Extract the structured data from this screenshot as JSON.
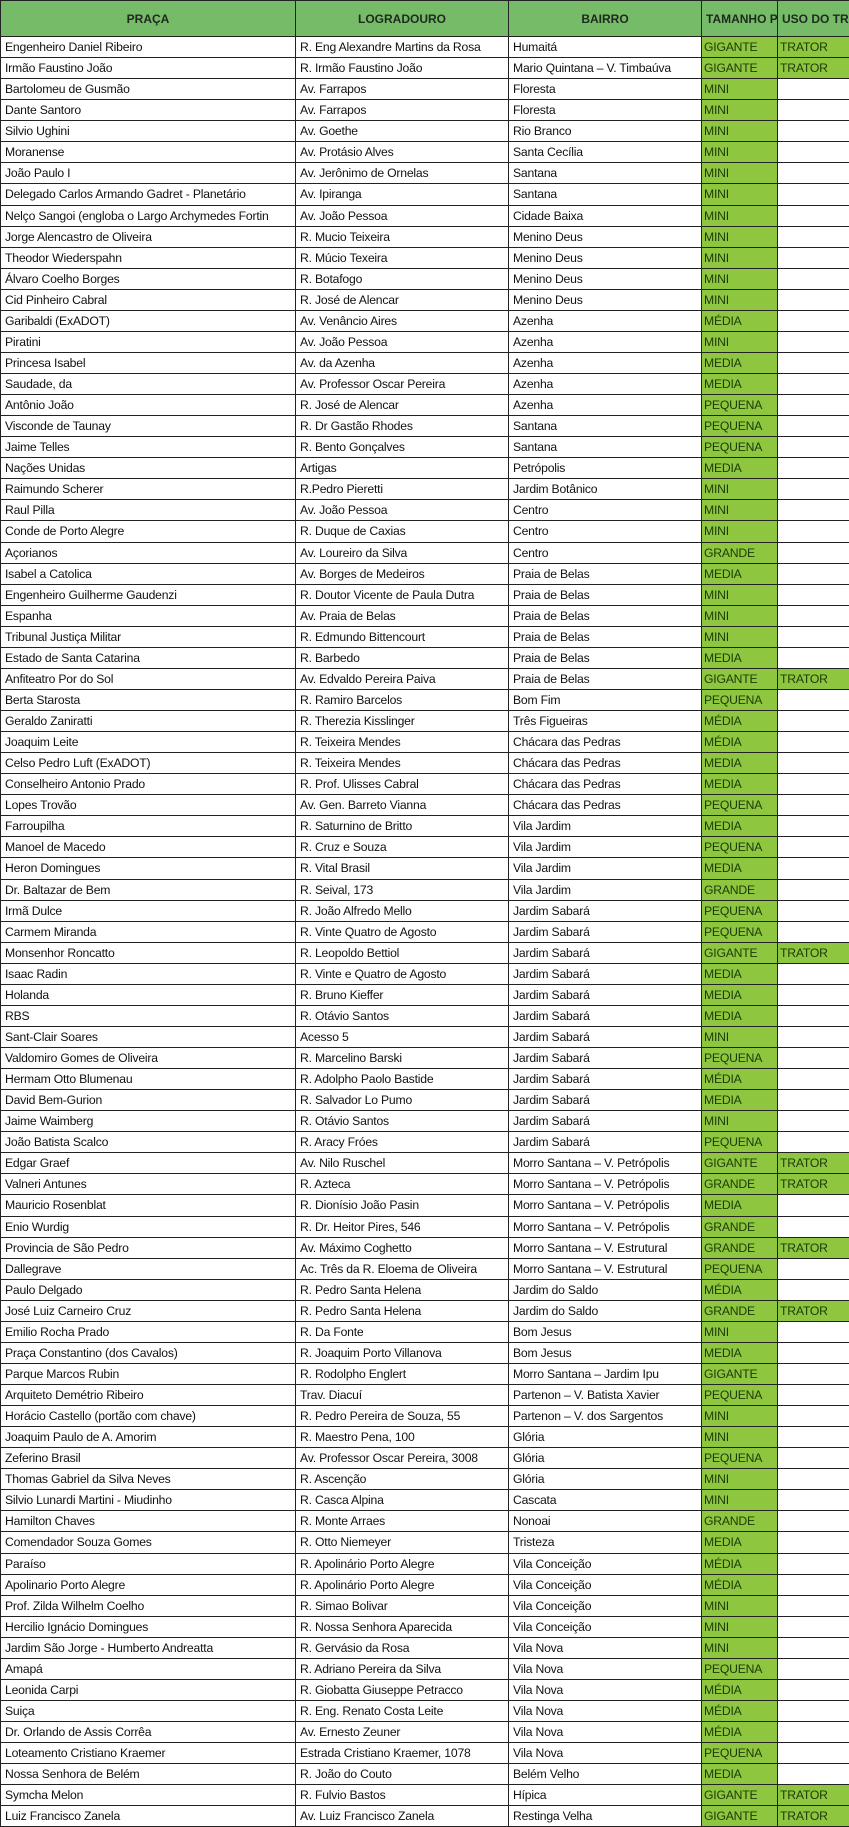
{
  "header": {
    "praca": "PRAÇA",
    "logradouro": "LOGRADOURO",
    "bairro": "BAIRRO",
    "tamanho": "TAMANHO PRAÇA",
    "uso": "USO DO TRATOR"
  },
  "colors": {
    "header_bg": "#76bb68",
    "highlight_bg": "#8ec63f"
  },
  "rows": [
    [
      "Engenheiro Daniel Ribeiro",
      "R. Eng Alexandre Martins da Rosa",
      "Humaitá",
      "GIGANTE",
      "TRATOR"
    ],
    [
      "Irmão Faustino João",
      "R. Irmão Faustino João",
      "Mario Quintana – V. Timbaúva",
      "GIGANTE",
      "TRATOR"
    ],
    [
      "Bartolomeu de Gusmão",
      "Av. Farrapos",
      "Floresta",
      "MINI",
      ""
    ],
    [
      "Dante Santoro",
      "Av. Farrapos",
      "Floresta",
      "MINI",
      ""
    ],
    [
      "Silvio Ughini",
      "Av. Goethe",
      "Rio Branco",
      "MINI",
      ""
    ],
    [
      "Moranense",
      "Av. Protásio Alves",
      "Santa Cecília",
      "MINI",
      ""
    ],
    [
      "João Paulo I",
      "Av. Jerônimo de Ornelas",
      "Santana",
      "MINI",
      ""
    ],
    [
      "Delegado Carlos Armando Gadret - Planetário",
      "Av. Ipiranga",
      "Santana",
      "MINI",
      ""
    ],
    [
      "Nelço Sangoi (engloba o Largo Archymedes Fortin",
      "Av. João Pessoa",
      "Cidade Baixa",
      "MINI",
      ""
    ],
    [
      "Jorge Alencastro de Oliveira",
      "R. Mucio Teixeira",
      "Menino Deus",
      "MINI",
      ""
    ],
    [
      "Theodor Wiederspahn",
      "R. Múcio Texeira",
      "Menino Deus",
      "MINI",
      ""
    ],
    [
      "Álvaro Coelho Borges",
      "R. Botafogo",
      "Menino Deus",
      "MINI",
      ""
    ],
    [
      "Cid Pinheiro Cabral",
      "R. José de Alencar",
      "Menino Deus",
      "MINI",
      ""
    ],
    [
      "Garibaldi (ExADOT)",
      "Av. Venâncio Aires",
      "Azenha",
      "MÉDIA",
      ""
    ],
    [
      "Piratini",
      "Av. João Pessoa",
      "Azenha",
      "MINI",
      ""
    ],
    [
      "Princesa Isabel",
      "Av. da Azenha",
      "Azenha",
      "MEDIA",
      ""
    ],
    [
      "Saudade, da",
      "Av. Professor Oscar Pereira",
      "Azenha",
      "MEDIA",
      ""
    ],
    [
      "Antônio João",
      "R. José de Alencar",
      "Azenha",
      "PEQUENA",
      ""
    ],
    [
      "Visconde de Taunay",
      "R. Dr Gastão Rhodes",
      "Santana",
      "PEQUENA",
      ""
    ],
    [
      "Jaime Telles",
      "R. Bento Gonçalves",
      "Santana",
      "PEQUENA",
      ""
    ],
    [
      "Nações Unidas",
      "Artigas",
      "Petrópolis",
      "MEDIA",
      ""
    ],
    [
      "Raimundo Scherer",
      "R.Pedro Pieretti",
      "Jardim Botânico",
      "MINI",
      ""
    ],
    [
      "Raul Pilla",
      "Av. João Pessoa",
      "Centro",
      "MINI",
      ""
    ],
    [
      "Conde de Porto Alegre",
      "R. Duque de Caxias",
      "Centro",
      "MINI",
      ""
    ],
    [
      "Açorianos",
      "Av. Loureiro da Silva",
      "Centro",
      "GRANDE",
      ""
    ],
    [
      "Isabel a Catolica",
      "Av. Borges de Medeiros",
      "Praia de Belas",
      "MEDIA",
      ""
    ],
    [
      "Engenheiro Guilherme Gaudenzi",
      "R. Doutor Vicente de Paula Dutra",
      "Praia de Belas",
      "MINI",
      ""
    ],
    [
      "Espanha",
      "Av. Praia de Belas",
      "Praia de Belas",
      "MINI",
      ""
    ],
    [
      "Tribunal Justiça Militar",
      "R. Edmundo Bittencourt",
      "Praia de Belas",
      "MINI",
      ""
    ],
    [
      "Estado de Santa Catarina",
      "R. Barbedo",
      "Praia de Belas",
      "MEDIA",
      ""
    ],
    [
      "Anfiteatro Por do Sol",
      "Av. Edvaldo Pereira Paiva",
      "Praia de Belas",
      "GIGANTE",
      "TRATOR"
    ],
    [
      "Berta Starosta",
      "R. Ramiro Barcelos",
      "Bom Fim",
      "PEQUENA",
      ""
    ],
    [
      "Geraldo Zaniratti",
      "R. Therezia Kisslinger",
      "Três Figueiras",
      "MÉDIA",
      ""
    ],
    [
      "Joaquim Leite",
      "R. Teixeira Mendes",
      "Chácara das Pedras",
      "MÉDIA",
      ""
    ],
    [
      "Celso Pedro Luft (ExADOT)",
      "R. Teixeira Mendes",
      "Chácara das Pedras",
      "MEDIA",
      ""
    ],
    [
      "Conselheiro Antonio Prado",
      "R. Prof. Ulisses Cabral",
      "Chácara das Pedras",
      "MEDIA",
      ""
    ],
    [
      "Lopes Trovão",
      "Av. Gen. Barreto Vianna",
      "Chácara das Pedras",
      "PEQUENA",
      ""
    ],
    [
      "Farroupilha",
      "R. Saturnino de Britto",
      "Vila Jardim",
      "MEDIA",
      ""
    ],
    [
      "Manoel de Macedo",
      "R. Cruz e Souza",
      "Vila Jardim",
      "PEQUENA",
      ""
    ],
    [
      "Heron Domingues",
      "R. Vital Brasil",
      "Vila Jardim",
      "MEDIA",
      ""
    ],
    [
      "Dr. Baltazar de Bem",
      "R. Seival, 173",
      "Vila Jardim",
      "GRANDE",
      ""
    ],
    [
      "Irmã Dulce",
      "R. João Alfredo Mello",
      "Jardim Sabará",
      "PEQUENA",
      ""
    ],
    [
      "Carmem Miranda",
      "R. Vinte Quatro de Agosto",
      "Jardim Sabará",
      "PEQUENA",
      ""
    ],
    [
      "Monsenhor Roncatto",
      "R. Leopoldo Bettiol",
      "Jardim Sabará",
      "GIGANTE",
      "TRATOR"
    ],
    [
      "Isaac Radin",
      "R. Vinte e Quatro de Agosto",
      "Jardim Sabará",
      "MEDIA",
      ""
    ],
    [
      "Holanda",
      "R. Bruno Kieffer",
      "Jardim Sabará",
      "MEDIA",
      ""
    ],
    [
      "RBS",
      "R. Otávio Santos",
      "Jardim Sabará",
      "MEDIA",
      ""
    ],
    [
      "Sant-Clair Soares",
      "Acesso 5",
      "Jardim Sabará",
      "MINI",
      ""
    ],
    [
      "Valdomiro Gomes de Oliveira",
      "R. Marcelino Barski",
      "Jardim Sabará",
      "PEQUENA",
      ""
    ],
    [
      "Hermam Otto Blumenau",
      "R. Adolpho Paolo Bastide",
      "Jardim Sabará",
      "MÉDIA",
      ""
    ],
    [
      "David Bem-Gurion",
      "R. Salvador Lo Pumo",
      "Jardim Sabará",
      "MEDIA",
      ""
    ],
    [
      "Jaime Waimberg",
      "R. Otávio Santos",
      "Jardim Sabará",
      "MINI",
      ""
    ],
    [
      "João Batista Scalco",
      "R. Aracy Fróes",
      "Jardim Sabará",
      "PEQUENA",
      ""
    ],
    [
      "Edgar Graef",
      "Av. Nilo Ruschel",
      "Morro Santana – V. Petrópolis",
      "GIGANTE",
      "TRATOR"
    ],
    [
      "Valneri Antunes",
      "R. Azteca",
      "Morro Santana – V. Petrópolis",
      "GRANDE",
      "TRATOR"
    ],
    [
      "Mauricio Rosenblat",
      "R. Dionísio João Pasin",
      "Morro Santana – V. Petrópolis",
      "MEDIA",
      ""
    ],
    [
      "Enio Wurdig",
      "R. Dr. Heitor Pires, 546",
      "Morro Santana – V. Petrópolis",
      "GRANDE",
      ""
    ],
    [
      "Provincia de São Pedro",
      "Av. Máximo Coghetto",
      "Morro Santana – V. Estrutural",
      "GRANDE",
      "TRATOR"
    ],
    [
      "Dallegrave",
      "Ac. Três da R. Eloema de Oliveira",
      "Morro Santana – V. Estrutural",
      "PEQUENA",
      ""
    ],
    [
      "Paulo Delgado",
      "R. Pedro Santa Helena",
      "Jardim do Saldo",
      "MÉDIA",
      ""
    ],
    [
      "José Luiz Carneiro Cruz",
      "R. Pedro Santa Helena",
      "Jardim do Saldo",
      "GRANDE",
      "TRATOR"
    ],
    [
      "Emilio Rocha Prado",
      "R. Da Fonte",
      "Bom Jesus",
      "MINI",
      ""
    ],
    [
      "Praça Constantino (dos Cavalos)",
      "R. Joaquim Porto Villanova",
      "Bom Jesus",
      "MEDIA",
      ""
    ],
    [
      "Parque Marcos Rubin",
      "R. Rodolpho Englert",
      "Morro Santana – Jardim Ipu",
      "GIGANTE",
      ""
    ],
    [
      "Arquiteto Demétrio Ribeiro",
      "Trav. Diacuí",
      "Partenon – V. Batista Xavier",
      "PEQUENA",
      ""
    ],
    [
      "Horácio Castello (portão com chave)",
      "R. Pedro Pereira de Souza, 55",
      "Partenon – V. dos Sargentos",
      "MINI",
      ""
    ],
    [
      "Joaquim Paulo de A. Amorim",
      "R. Maestro Pena, 100",
      "Glória",
      "MINI",
      ""
    ],
    [
      "Zeferino Brasil",
      "Av. Professor Oscar Pereira, 3008",
      "Glória",
      "PEQUENA",
      ""
    ],
    [
      "Thomas Gabriel da Silva Neves",
      "R. Ascenção",
      "Glória",
      "MINI",
      ""
    ],
    [
      "Silvio Lunardi Martini - Miudinho",
      "R. Casca Alpina",
      "Cascata",
      "MINI",
      ""
    ],
    [
      "Hamilton Chaves",
      "R. Monte Arraes",
      "Nonoai",
      "GRANDE",
      ""
    ],
    [
      "Comendador Souza Gomes",
      "R. Otto Niemeyer",
      "Tristeza",
      "MEDIA",
      ""
    ],
    [
      "Paraíso",
      "R. Apolinário Porto Alegre",
      "Vila Conceição",
      "MÉDIA",
      ""
    ],
    [
      "Apolinario Porto Alegre",
      "R. Apolinário Porto Alegre",
      "Vila Conceição",
      "MÉDIA",
      ""
    ],
    [
      "Prof. Zilda Wilhelm Coelho",
      "R. Simao Bolivar",
      "Vila Conceição",
      "MINI",
      ""
    ],
    [
      "Hercilio Ignácio Domingues",
      "R. Nossa Senhora Aparecida",
      "Vila Conceição",
      "MINI",
      ""
    ],
    [
      "Jardim São Jorge - Humberto Andreatta",
      "R. Gervásio da Rosa",
      "Vila Nova",
      "MINI",
      ""
    ],
    [
      "Amapá",
      "R. Adriano Pereira da Silva",
      "Vila Nova",
      "PEQUENA",
      ""
    ],
    [
      "Leonida Carpi",
      "R. Giobatta Giuseppe Petracco",
      "Vila Nova",
      "MÉDIA",
      ""
    ],
    [
      "Suiça",
      "R. Eng. Renato Costa Leite",
      "Vila Nova",
      "MÉDIA",
      ""
    ],
    [
      "Dr. Orlando de Assis Corrêa",
      "Av. Ernesto Zeuner",
      "Vila Nova",
      "MÉDIA",
      ""
    ],
    [
      "Loteamento Cristiano Kraemer",
      "Estrada Cristiano Kraemer, 1078",
      "Vila Nova",
      "PEQUENA",
      ""
    ],
    [
      "Nossa Senhora de Belém",
      "R. João do Couto",
      "Belém Velho",
      "MEDIA",
      ""
    ],
    [
      "Symcha Melon",
      "R. Fulvio Bastos",
      "Hípica",
      "GIGANTE",
      "TRATOR"
    ],
    [
      "Luiz Francisco Zanela",
      "Av. Luiz Francisco Zanela",
      "Restinga Velha",
      "GIGANTE",
      "TRATOR"
    ]
  ]
}
